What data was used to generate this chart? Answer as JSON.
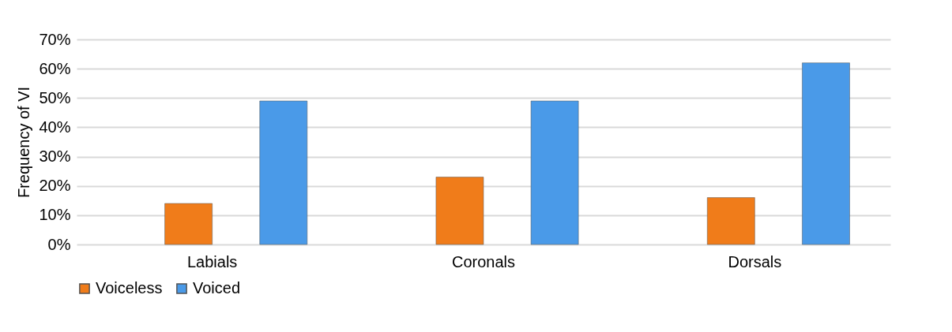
{
  "chart_data": {
    "type": "bar",
    "ylabel": "Frequency of VI",
    "categories": [
      "Labials",
      "Coronals",
      "Dorsals"
    ],
    "series": [
      {
        "name": "Voiceless",
        "color": "#f07c1a",
        "values": [
          14,
          23,
          16
        ]
      },
      {
        "name": "Voiced",
        "color": "#4a9ae8",
        "values": [
          49,
          49,
          62
        ]
      }
    ],
    "ylim": [
      0,
      70
    ],
    "yticks": [
      {
        "value": 0,
        "label": "0%"
      },
      {
        "value": 10,
        "label": "10%"
      },
      {
        "value": 20,
        "label": "20%"
      },
      {
        "value": 30,
        "label": "30%"
      },
      {
        "value": 40,
        "label": "40%"
      },
      {
        "value": 50,
        "label": "50%"
      },
      {
        "value": 60,
        "label": "60%"
      },
      {
        "value": 70,
        "label": "70%"
      }
    ],
    "grid": "y",
    "legend": "bottom"
  }
}
